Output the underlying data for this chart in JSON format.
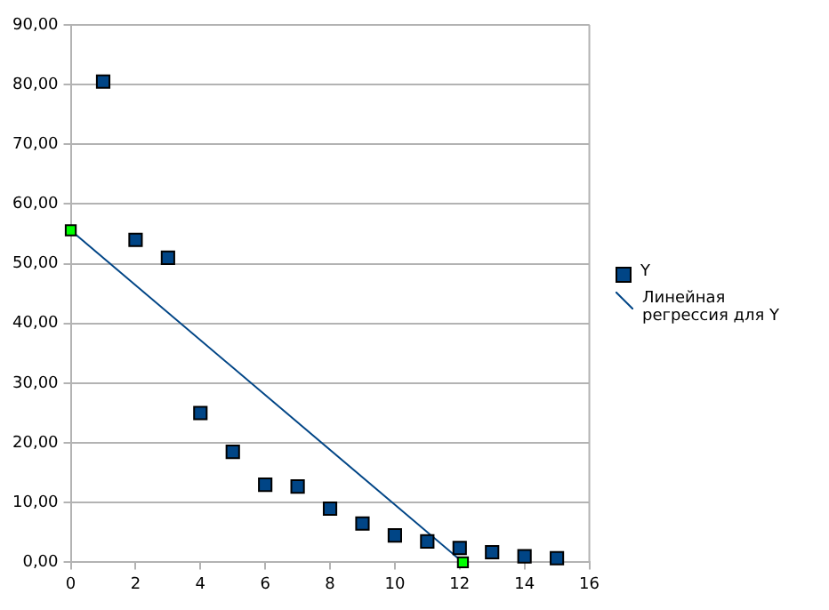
{
  "chart_data": {
    "type": "scatter",
    "xlim": [
      0,
      16
    ],
    "xticks": [
      0,
      2,
      4,
      6,
      8,
      10,
      12,
      14,
      16
    ],
    "ylim": [
      0,
      90
    ],
    "yticks": [
      {
        "value": 0,
        "label": "0,00"
      },
      {
        "value": 10,
        "label": "10,00"
      },
      {
        "value": 20,
        "label": "20,00"
      },
      {
        "value": 30,
        "label": "30,00"
      },
      {
        "value": 40,
        "label": "40,00"
      },
      {
        "value": 50,
        "label": "50,00"
      },
      {
        "value": 60,
        "label": "60,00"
      },
      {
        "value": 70,
        "label": "70,00"
      },
      {
        "value": 80,
        "label": "80,00"
      },
      {
        "value": 90,
        "label": "90,00"
      }
    ],
    "grid": "y",
    "legend": "right",
    "marker": "square",
    "series": [
      {
        "name": "Y",
        "type": "scatter",
        "color": "#004586",
        "x": [
          1,
          2,
          3,
          4,
          5,
          6,
          7,
          8,
          9,
          10,
          11,
          12,
          13,
          14,
          15
        ],
        "values": [
          80.5,
          54,
          51,
          25,
          18.5,
          13,
          12.7,
          9,
          6.5,
          4.5,
          3.5,
          2.4,
          1.7,
          1.0,
          0.7
        ]
      },
      {
        "name": "Линейная регрессия для Y",
        "type": "line",
        "color": "#004586",
        "colors": [
          "#00ff00",
          "#00ff00"
        ],
        "x": [
          0,
          12.1
        ],
        "values": [
          55.6,
          0
        ]
      }
    ]
  }
}
